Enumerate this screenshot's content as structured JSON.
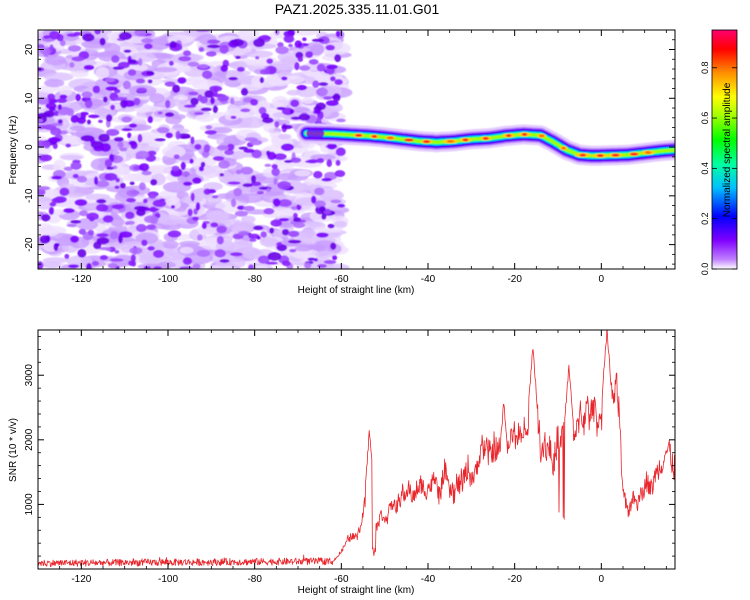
{
  "title": "PAZ1.2025.335.11.01.G01",
  "chart_data": [
    {
      "type": "heatmap",
      "xlabel": "Height of straight line (km)",
      "ylabel": "Frequency (Hz)",
      "xlim": [
        -130,
        17
      ],
      "ylim": [
        -25,
        24
      ],
      "xticks": [
        -120,
        -100,
        -80,
        -60,
        -40,
        -20,
        0
      ],
      "yticks": [
        -20,
        -10,
        0,
        10,
        20
      ],
      "noise_region_x": [
        -130,
        -60
      ],
      "noise_freq_range": [
        -25,
        24
      ],
      "ridge": {
        "x": [
          -68,
          -62,
          -58,
          -54,
          -50,
          -46,
          -42,
          -38,
          -34,
          -30,
          -26,
          -22,
          -18,
          -14,
          -11,
          -8,
          -5,
          -2,
          2,
          6,
          10,
          14,
          17
        ],
        "freq": [
          2.8,
          2.7,
          2.5,
          2.3,
          2.0,
          1.6,
          1.2,
          1.0,
          1.2,
          1.6,
          1.8,
          2.3,
          2.6,
          2.4,
          1.0,
          -0.6,
          -1.6,
          -1.8,
          -1.7,
          -1.6,
          -1.2,
          -0.8,
          -0.6
        ]
      },
      "colorbar": {
        "label": "Normalized spectral amplitude",
        "ticks": [
          0.0,
          0.2,
          0.4,
          0.6,
          0.8
        ],
        "tick_labels": [
          "0.0",
          "0.2",
          "0.4",
          "0.6",
          "0.8"
        ],
        "range": [
          0,
          0.95
        ],
        "colors": [
          "#ffffff",
          "#8000ff",
          "#0000ff",
          "#00ffff",
          "#00ff00",
          "#ffff00",
          "#ff8000",
          "#ff0000",
          "#ff0080"
        ]
      }
    },
    {
      "type": "line",
      "xlabel": "Height of straight line (km)",
      "ylabel": "SNR (10 * v/v)",
      "xlim": [
        -130,
        17
      ],
      "ylim": [
        0,
        3700
      ],
      "xticks": [
        -120,
        -100,
        -80,
        -60,
        -40,
        -20,
        0
      ],
      "yticks": [
        1000,
        2000,
        3000
      ],
      "color": "#e8252b",
      "series_profile": {
        "x": [
          -130,
          -62,
          -60,
          -58,
          -56,
          -54,
          -53,
          -52,
          -50,
          -46,
          -42,
          -38,
          -34,
          -30,
          -26,
          -24,
          -20,
          -18,
          -16,
          -14,
          -12,
          -10,
          -8,
          -6,
          -4,
          -2,
          0,
          2,
          4,
          5,
          6,
          8,
          10,
          14,
          17
        ],
        "snr": [
          90,
          120,
          260,
          500,
          620,
          1300,
          1700,
          780,
          980,
          1080,
          1200,
          1330,
          1420,
          1540,
          1680,
          1850,
          1950,
          2100,
          2250,
          2050,
          1950,
          2000,
          1900,
          2100,
          2200,
          2350,
          2550,
          2700,
          2450,
          1200,
          1050,
          1200,
          1300,
          1400,
          1600
        ]
      },
      "peaks": [
        {
          "x": -53.5,
          "snr": 2150
        },
        {
          "x": -15.8,
          "snr": 3450
        },
        {
          "x": -22.5,
          "snr": 2600
        },
        {
          "x": 1.3,
          "snr": 3700
        },
        {
          "x": -7.5,
          "snr": 3150
        }
      ]
    }
  ]
}
